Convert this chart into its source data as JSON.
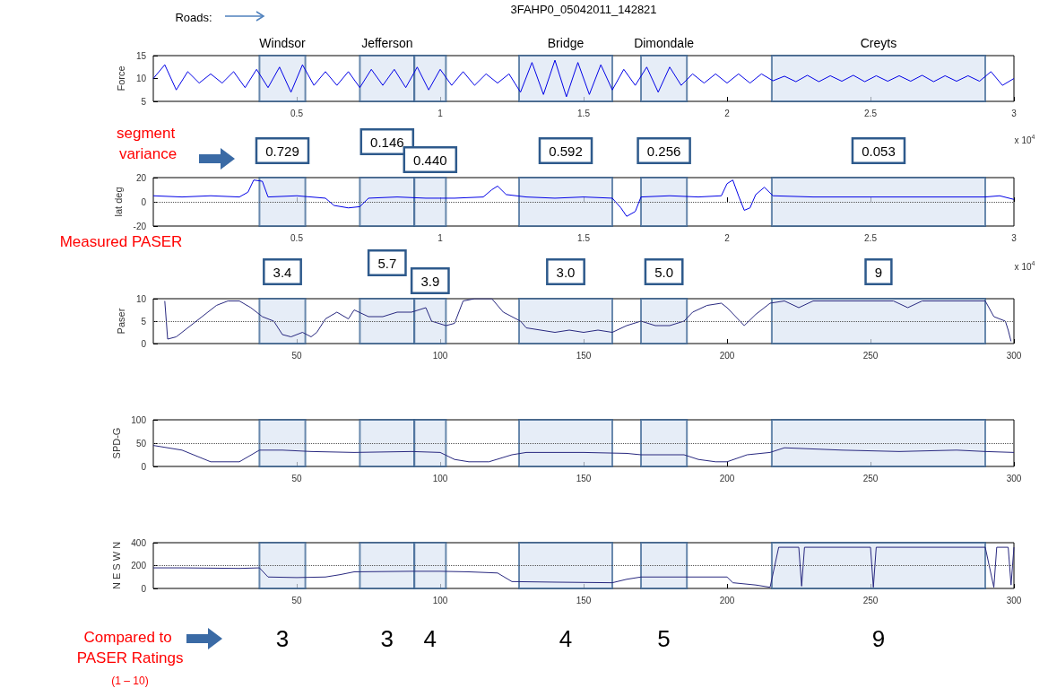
{
  "chart_data": [
    {
      "type": "line",
      "title": "3FAHP0_05042011_142821",
      "ylabel": "Force",
      "color": "#0000e6",
      "x": [
        0,
        0.04,
        0.08,
        0.12,
        0.16,
        0.2,
        0.24,
        0.28,
        0.32,
        0.36,
        0.4,
        0.44,
        0.48,
        0.52,
        0.56,
        0.6,
        0.64,
        0.68,
        0.72,
        0.76,
        0.8,
        0.84,
        0.88,
        0.92,
        0.96,
        1.0,
        1.04,
        1.08,
        1.12,
        1.16,
        1.2,
        1.24,
        1.28,
        1.32,
        1.36,
        1.4,
        1.44,
        1.48,
        1.52,
        1.56,
        1.6,
        1.64,
        1.68,
        1.72,
        1.76,
        1.8,
        1.84,
        1.88,
        1.92,
        1.96,
        2.0,
        2.04,
        2.08,
        2.12,
        2.16,
        2.2,
        2.24,
        2.28,
        2.32,
        2.36,
        2.4,
        2.44,
        2.48,
        2.52,
        2.56,
        2.6,
        2.64,
        2.68,
        2.72,
        2.76,
        2.8,
        2.84,
        2.88,
        2.92,
        2.96,
        3.0
      ],
      "values": [
        10,
        13,
        7.5,
        11.5,
        9,
        11,
        9,
        11.5,
        8,
        12,
        8,
        12.5,
        7,
        13,
        8.5,
        11.5,
        8.5,
        11.5,
        8,
        12,
        8.5,
        12,
        8,
        12.5,
        7.5,
        12,
        8.5,
        11.5,
        8.5,
        11,
        9,
        11,
        7,
        13.5,
        6.5,
        14,
        6,
        13.5,
        6.5,
        13,
        7.5,
        12,
        8.5,
        12.5,
        7,
        12.5,
        8.5,
        11,
        9,
        11,
        9,
        11,
        9,
        11,
        9.5,
        10.5,
        9.3,
        10.7,
        9.3,
        10.6,
        9.4,
        10.7,
        9.3,
        10.6,
        9.4,
        10.6,
        9.4,
        10.7,
        9.3,
        10.6,
        9.4,
        10.6,
        9.4,
        11.5,
        8.5,
        10
      ],
      "xlim": [
        0,
        3
      ],
      "xticks": [
        0.5,
        1,
        1.5,
        2,
        2.5,
        3
      ],
      "ylim": [
        5,
        15
      ],
      "yticks": [
        5,
        10,
        15
      ],
      "bands": [
        {
          "axis": "x",
          "from": 0.37,
          "to": 0.53,
          "label": "Windsor",
          "color": "#dce6f4"
        },
        {
          "axis": "x",
          "from": 0.72,
          "to": 0.91,
          "label": "Jefferson",
          "color": "#dce6f4"
        },
        {
          "axis": "x",
          "from": 0.91,
          "to": 1.02,
          "label": null,
          "color": "#dce6f4"
        },
        {
          "axis": "x",
          "from": 1.275,
          "to": 1.6,
          "label": "Bridge",
          "color": "#dce6f4"
        },
        {
          "axis": "x",
          "from": 1.7,
          "to": 1.86,
          "label": "Dimondale",
          "color": "#dce6f4"
        },
        {
          "axis": "x",
          "from": 2.156,
          "to": 2.9,
          "label": "Creyts",
          "color": "#dce6f4"
        }
      ],
      "annotations": [
        "Roads:",
        "x 10$^{4}$"
      ]
    },
    {
      "type": "line",
      "ylabel": "lat deg",
      "color": "#0000e6",
      "x": [
        0,
        0.1,
        0.2,
        0.3,
        0.33,
        0.35,
        0.38,
        0.4,
        0.5,
        0.55,
        0.6,
        0.63,
        0.68,
        0.72,
        0.75,
        0.85,
        0.95,
        1.05,
        1.15,
        1.18,
        1.2,
        1.23,
        1.3,
        1.4,
        1.5,
        1.6,
        1.63,
        1.65,
        1.68,
        1.7,
        1.8,
        1.9,
        1.98,
        2.0,
        2.02,
        2.04,
        2.06,
        2.08,
        2.1,
        2.13,
        2.16,
        2.3,
        2.5,
        2.7,
        2.9,
        2.95,
        3.0
      ],
      "values": [
        5,
        4,
        5,
        4,
        8,
        18,
        17,
        4,
        5,
        4,
        3,
        -3,
        -5,
        -4,
        3,
        4,
        3,
        3,
        4,
        10,
        13,
        6,
        4,
        3,
        4,
        3,
        -5,
        -12,
        -8,
        4,
        5,
        4,
        5,
        15,
        18,
        5,
        -7,
        -5,
        6,
        12,
        5,
        4,
        4,
        4,
        4,
        5,
        2
      ],
      "xlim": [
        0,
        3
      ],
      "xticks": [
        0.5,
        1,
        1.5,
        2,
        2.5,
        3
      ],
      "ylim": [
        -20,
        20
      ],
      "yticks": [
        -20,
        0,
        20
      ],
      "ref_lines": [
        {
          "axis": "y",
          "value": 0,
          "line_style": "dotted",
          "color": "#555555"
        }
      ],
      "bands": [
        {
          "axis": "x",
          "from": 0.37,
          "to": 0.53,
          "label": "0.729",
          "color": "#dce6f4"
        },
        {
          "axis": "x",
          "from": 0.72,
          "to": 0.91,
          "label": "0.146",
          "color": "#dce6f4"
        },
        {
          "axis": "x",
          "from": 0.91,
          "to": 1.02,
          "label": "0.440",
          "color": "#dce6f4"
        },
        {
          "axis": "x",
          "from": 1.275,
          "to": 1.6,
          "label": "0.592",
          "color": "#dce6f4"
        },
        {
          "axis": "x",
          "from": 1.7,
          "to": 1.86,
          "label": "0.256",
          "color": "#dce6f4"
        },
        {
          "axis": "x",
          "from": 2.156,
          "to": 2.9,
          "label": "0.053",
          "color": "#dce6f4"
        }
      ],
      "annotations": [
        "segment variance",
        "x 10$^{4}$"
      ]
    },
    {
      "type": "line",
      "ylabel": "Paser",
      "color": "#28287f",
      "x": [
        4,
        5,
        8,
        15,
        22,
        26,
        30,
        34,
        38,
        42,
        45,
        48,
        52,
        55,
        57,
        60,
        64,
        68,
        70,
        75,
        80,
        85,
        90,
        95,
        97,
        102,
        105,
        108,
        112,
        118,
        122,
        128,
        130,
        135,
        140,
        145,
        150,
        155,
        160,
        165,
        170,
        175,
        180,
        185,
        188,
        193,
        198,
        200,
        203,
        206,
        210,
        215,
        220,
        225,
        230,
        240,
        250,
        258,
        263,
        268,
        280,
        290,
        293,
        297,
        298,
        299
      ],
      "values": [
        9.5,
        1,
        1.5,
        5,
        8.5,
        9.5,
        9.5,
        8,
        6,
        5,
        2,
        1.5,
        2.5,
        1.5,
        2.5,
        5.5,
        7,
        5.5,
        7.5,
        6,
        6,
        7,
        7,
        8,
        5,
        4,
        4.5,
        9.5,
        10,
        10,
        7,
        5,
        3.5,
        3,
        2.5,
        3,
        2.5,
        3,
        2.5,
        4,
        5,
        4,
        4,
        5,
        7,
        8.5,
        9,
        8,
        6,
        4,
        6.5,
        9,
        9.5,
        8,
        9.5,
        9.5,
        9.5,
        9.5,
        8,
        9.5,
        9.5,
        9.5,
        6,
        5,
        3,
        0.5
      ],
      "xlim": [
        0,
        300
      ],
      "xticks": [
        50,
        100,
        150,
        200,
        250,
        300
      ],
      "ylim": [
        0,
        10
      ],
      "yticks": [
        0,
        5,
        10
      ],
      "ref_lines": [
        {
          "axis": "y",
          "value": 5,
          "line_style": "dotted",
          "color": "#555555"
        }
      ],
      "bands": [
        {
          "axis": "x",
          "from": 37,
          "to": 53,
          "label": "3.4",
          "color": "#dce6f4"
        },
        {
          "axis": "x",
          "from": 72,
          "to": 91,
          "label": "5.7",
          "color": "#dce6f4"
        },
        {
          "axis": "x",
          "from": 91,
          "to": 102,
          "label": "3.9",
          "color": "#dce6f4"
        },
        {
          "axis": "x",
          "from": 127.5,
          "to": 160,
          "label": "3.0",
          "color": "#dce6f4"
        },
        {
          "axis": "x",
          "from": 170,
          "to": 186,
          "label": "5.0",
          "color": "#dce6f4"
        },
        {
          "axis": "x",
          "from": 215.6,
          "to": 290,
          "label": "9",
          "color": "#dce6f4"
        }
      ],
      "annotations": [
        "Measured PASER"
      ]
    },
    {
      "type": "line",
      "ylabel": "SPD-G",
      "color": "#28287f",
      "x": [
        0,
        10,
        20,
        30,
        37,
        45,
        55,
        70,
        90,
        100,
        105,
        110,
        117,
        125,
        130,
        150,
        165,
        170,
        185,
        190,
        196,
        200,
        207,
        215,
        220,
        240,
        260,
        280,
        290,
        300
      ],
      "values": [
        45,
        35,
        10,
        10,
        35,
        35,
        32,
        30,
        32,
        30,
        15,
        10,
        10,
        25,
        30,
        30,
        28,
        25,
        25,
        15,
        10,
        10,
        25,
        30,
        40,
        35,
        32,
        35,
        32,
        30
      ],
      "xlim": [
        0,
        300
      ],
      "xticks": [
        50,
        100,
        150,
        200,
        250,
        300
      ],
      "ylim": [
        0,
        100
      ],
      "yticks": [
        0,
        50,
        100
      ],
      "ref_lines": [
        {
          "axis": "y",
          "value": 50,
          "line_style": "dotted",
          "color": "#555555"
        }
      ],
      "bands": [
        {
          "axis": "x",
          "from": 37,
          "to": 53,
          "label": null,
          "color": "#dce6f4"
        },
        {
          "axis": "x",
          "from": 72,
          "to": 91,
          "label": null,
          "color": "#dce6f4"
        },
        {
          "axis": "x",
          "from": 91,
          "to": 102,
          "label": null,
          "color": "#dce6f4"
        },
        {
          "axis": "x",
          "from": 127.5,
          "to": 160,
          "label": null,
          "color": "#dce6f4"
        },
        {
          "axis": "x",
          "from": 170,
          "to": 186,
          "label": null,
          "color": "#dce6f4"
        },
        {
          "axis": "x",
          "from": 215.6,
          "to": 290,
          "label": null,
          "color": "#dce6f4"
        }
      ]
    },
    {
      "type": "line",
      "ylabel": "N E S W N",
      "color": "#28287f",
      "x": [
        0,
        10,
        30,
        37,
        40,
        50,
        60,
        65,
        70,
        90,
        100,
        110,
        120,
        125,
        140,
        160,
        165,
        170,
        200,
        202,
        210,
        215,
        218,
        225,
        226,
        227,
        250,
        251,
        252,
        290,
        293,
        294,
        298,
        299,
        300
      ],
      "values": [
        180,
        180,
        175,
        180,
        100,
        95,
        100,
        120,
        145,
        150,
        150,
        145,
        135,
        60,
        55,
        50,
        80,
        100,
        100,
        50,
        30,
        10,
        360,
        360,
        20,
        360,
        360,
        10,
        360,
        360,
        10,
        360,
        360,
        30,
        360
      ],
      "xlim": [
        0,
        300
      ],
      "xticks": [
        50,
        100,
        150,
        200,
        250,
        300
      ],
      "ylim": [
        0,
        400
      ],
      "yticks": [
        0,
        200,
        400
      ],
      "ref_lines": [
        {
          "axis": "y",
          "value": 200,
          "line_style": "dotted",
          "color": "#555555"
        }
      ],
      "bands": [
        {
          "axis": "x",
          "from": 37,
          "to": 53,
          "label": "3",
          "color": "#dce6f4"
        },
        {
          "axis": "x",
          "from": 72,
          "to": 91,
          "label": "3",
          "color": "#dce6f4"
        },
        {
          "axis": "x",
          "from": 91,
          "to": 102,
          "label": "4",
          "color": "#dce6f4"
        },
        {
          "axis": "x",
          "from": 127.5,
          "to": 160,
          "label": "4",
          "color": "#dce6f4"
        },
        {
          "axis": "x",
          "from": 170,
          "to": 186,
          "label": "5",
          "color": "#dce6f4"
        },
        {
          "axis": "x",
          "from": 215.6,
          "to": 290,
          "label": "9",
          "color": "#dce6f4"
        }
      ],
      "annotations": [
        "Compared to PASER Ratings",
        "(1 – 10)"
      ]
    }
  ]
}
